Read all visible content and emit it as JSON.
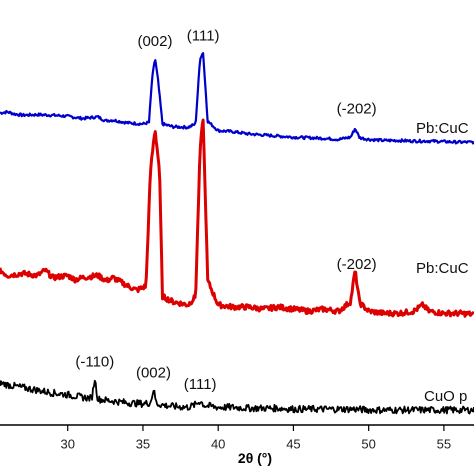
{
  "chart_data": {
    "type": "line",
    "xlabel": "2θ (°)",
    "xlim": [
      25.5,
      57
    ],
    "x_ticks": [
      30,
      35,
      40,
      45,
      50,
      55
    ],
    "x_tick_labels": [
      "30",
      "35",
      "40",
      "45",
      "50",
      "55"
    ],
    "series": [
      {
        "name": "Pb:CuO",
        "label_text": "Pb:CuC",
        "color": "#0000cc",
        "points": [
          [
            25.5,
            1.0
          ],
          [
            26,
            1.02
          ],
          [
            26.5,
            0.98
          ],
          [
            27,
            0.96
          ],
          [
            28,
            0.97
          ],
          [
            29,
            0.96
          ],
          [
            30,
            0.94
          ],
          [
            31,
            0.9
          ],
          [
            32,
            0.93
          ],
          [
            32.5,
            0.86
          ],
          [
            33,
            0.87
          ],
          [
            34,
            0.82
          ],
          [
            35,
            0.8
          ],
          [
            35.4,
            0.83
          ],
          [
            35.6,
            1.6
          ],
          [
            35.8,
            2.0
          ],
          [
            36.0,
            1.6
          ],
          [
            36.3,
            0.8
          ],
          [
            37,
            0.75
          ],
          [
            38,
            0.74
          ],
          [
            38.5,
            0.8
          ],
          [
            38.8,
            2.0
          ],
          [
            39.0,
            2.1
          ],
          [
            39.3,
            0.85
          ],
          [
            40,
            0.68
          ],
          [
            41,
            0.66
          ],
          [
            42,
            0.62
          ],
          [
            43,
            0.6
          ],
          [
            44,
            0.58
          ],
          [
            45,
            0.56
          ],
          [
            46,
            0.55
          ],
          [
            47,
            0.54
          ],
          [
            48,
            0.52
          ],
          [
            48.8,
            0.56
          ],
          [
            49.1,
            0.72
          ],
          [
            49.4,
            0.55
          ],
          [
            50,
            0.52
          ],
          [
            51,
            0.5
          ],
          [
            52,
            0.5
          ],
          [
            53,
            0.49
          ],
          [
            54,
            0.49
          ],
          [
            55,
            0.48
          ],
          [
            56,
            0.47
          ],
          [
            57,
            0.47
          ]
        ],
        "peaks": [
          {
            "x": 35.8,
            "label": "(002)"
          },
          {
            "x": 39.0,
            "label": "(111)"
          },
          {
            "x": 49.2,
            "label": "(-202)"
          }
        ]
      },
      {
        "name": "Pb:CuO",
        "label_text": "Pb:CuC",
        "color": "#dd0000",
        "points": [
          [
            25.5,
            0.55
          ],
          [
            26,
            0.5
          ],
          [
            27,
            0.52
          ],
          [
            28,
            0.5
          ],
          [
            28.5,
            0.55
          ],
          [
            29,
            0.48
          ],
          [
            30,
            0.5
          ],
          [
            30.5,
            0.46
          ],
          [
            31,
            0.48
          ],
          [
            32,
            0.5
          ],
          [
            32.6,
            0.45
          ],
          [
            33,
            0.48
          ],
          [
            34,
            0.4
          ],
          [
            34.6,
            0.36
          ],
          [
            35.2,
            0.4
          ],
          [
            35.5,
            1.5
          ],
          [
            35.8,
            1.9
          ],
          [
            36.1,
            1.5
          ],
          [
            36.3,
            0.3
          ],
          [
            37,
            0.25
          ],
          [
            38,
            0.22
          ],
          [
            38.5,
            0.3
          ],
          [
            38.8,
            1.7
          ],
          [
            39.0,
            2.0
          ],
          [
            39.3,
            0.45
          ],
          [
            40,
            0.22
          ],
          [
            41,
            0.2
          ],
          [
            42,
            0.2
          ],
          [
            43,
            0.18
          ],
          [
            44,
            0.2
          ],
          [
            45,
            0.18
          ],
          [
            46,
            0.16
          ],
          [
            47,
            0.18
          ],
          [
            48,
            0.16
          ],
          [
            48.8,
            0.25
          ],
          [
            49.1,
            0.55
          ],
          [
            49.4,
            0.24
          ],
          [
            50,
            0.16
          ],
          [
            51,
            0.14
          ],
          [
            52,
            0.14
          ],
          [
            53,
            0.16
          ],
          [
            53.6,
            0.22
          ],
          [
            54,
            0.16
          ],
          [
            55,
            0.14
          ],
          [
            56,
            0.14
          ],
          [
            57,
            0.13
          ]
        ],
        "peaks": [
          {
            "x": 49.2,
            "label": "(-202)"
          }
        ]
      },
      {
        "name": "CuO",
        "label_text": "CuO p",
        "color": "#000000",
        "points": [
          [
            25.5,
            0.3
          ],
          [
            26,
            0.28
          ],
          [
            27,
            0.25
          ],
          [
            28,
            0.22
          ],
          [
            29,
            0.19
          ],
          [
            30,
            0.17
          ],
          [
            31,
            0.14
          ],
          [
            31.6,
            0.13
          ],
          [
            31.8,
            0.35
          ],
          [
            32.0,
            0.12
          ],
          [
            33,
            0.1
          ],
          [
            34,
            0.08
          ],
          [
            35,
            0.07
          ],
          [
            35.5,
            0.08
          ],
          [
            35.7,
            0.23
          ],
          [
            35.9,
            0.07
          ],
          [
            36.5,
            0.05
          ],
          [
            37,
            0.04
          ],
          [
            38,
            0.03
          ],
          [
            38.5,
            0.06
          ],
          [
            38.8,
            0.1
          ],
          [
            39.1,
            0.05
          ],
          [
            40,
            0.03
          ],
          [
            41,
            0.03
          ],
          [
            42,
            0.02
          ],
          [
            43,
            0.02
          ],
          [
            44,
            0.02
          ],
          [
            45,
            0.01
          ],
          [
            46,
            0.01
          ],
          [
            47,
            0.01
          ],
          [
            48,
            0.01
          ],
          [
            49,
            0.01
          ],
          [
            50,
            0.0
          ],
          [
            51,
            0.0
          ],
          [
            52,
            0.0
          ],
          [
            53,
            0.0
          ],
          [
            54,
            0.0
          ],
          [
            55,
            0.0
          ],
          [
            56,
            0.0
          ],
          [
            57,
            0.0
          ]
        ],
        "peaks": [
          {
            "x": 31.8,
            "label": "(-110)"
          },
          {
            "x": 35.7,
            "label": "(002)"
          },
          {
            "x": 38.8,
            "label": "(111)"
          }
        ]
      }
    ]
  }
}
